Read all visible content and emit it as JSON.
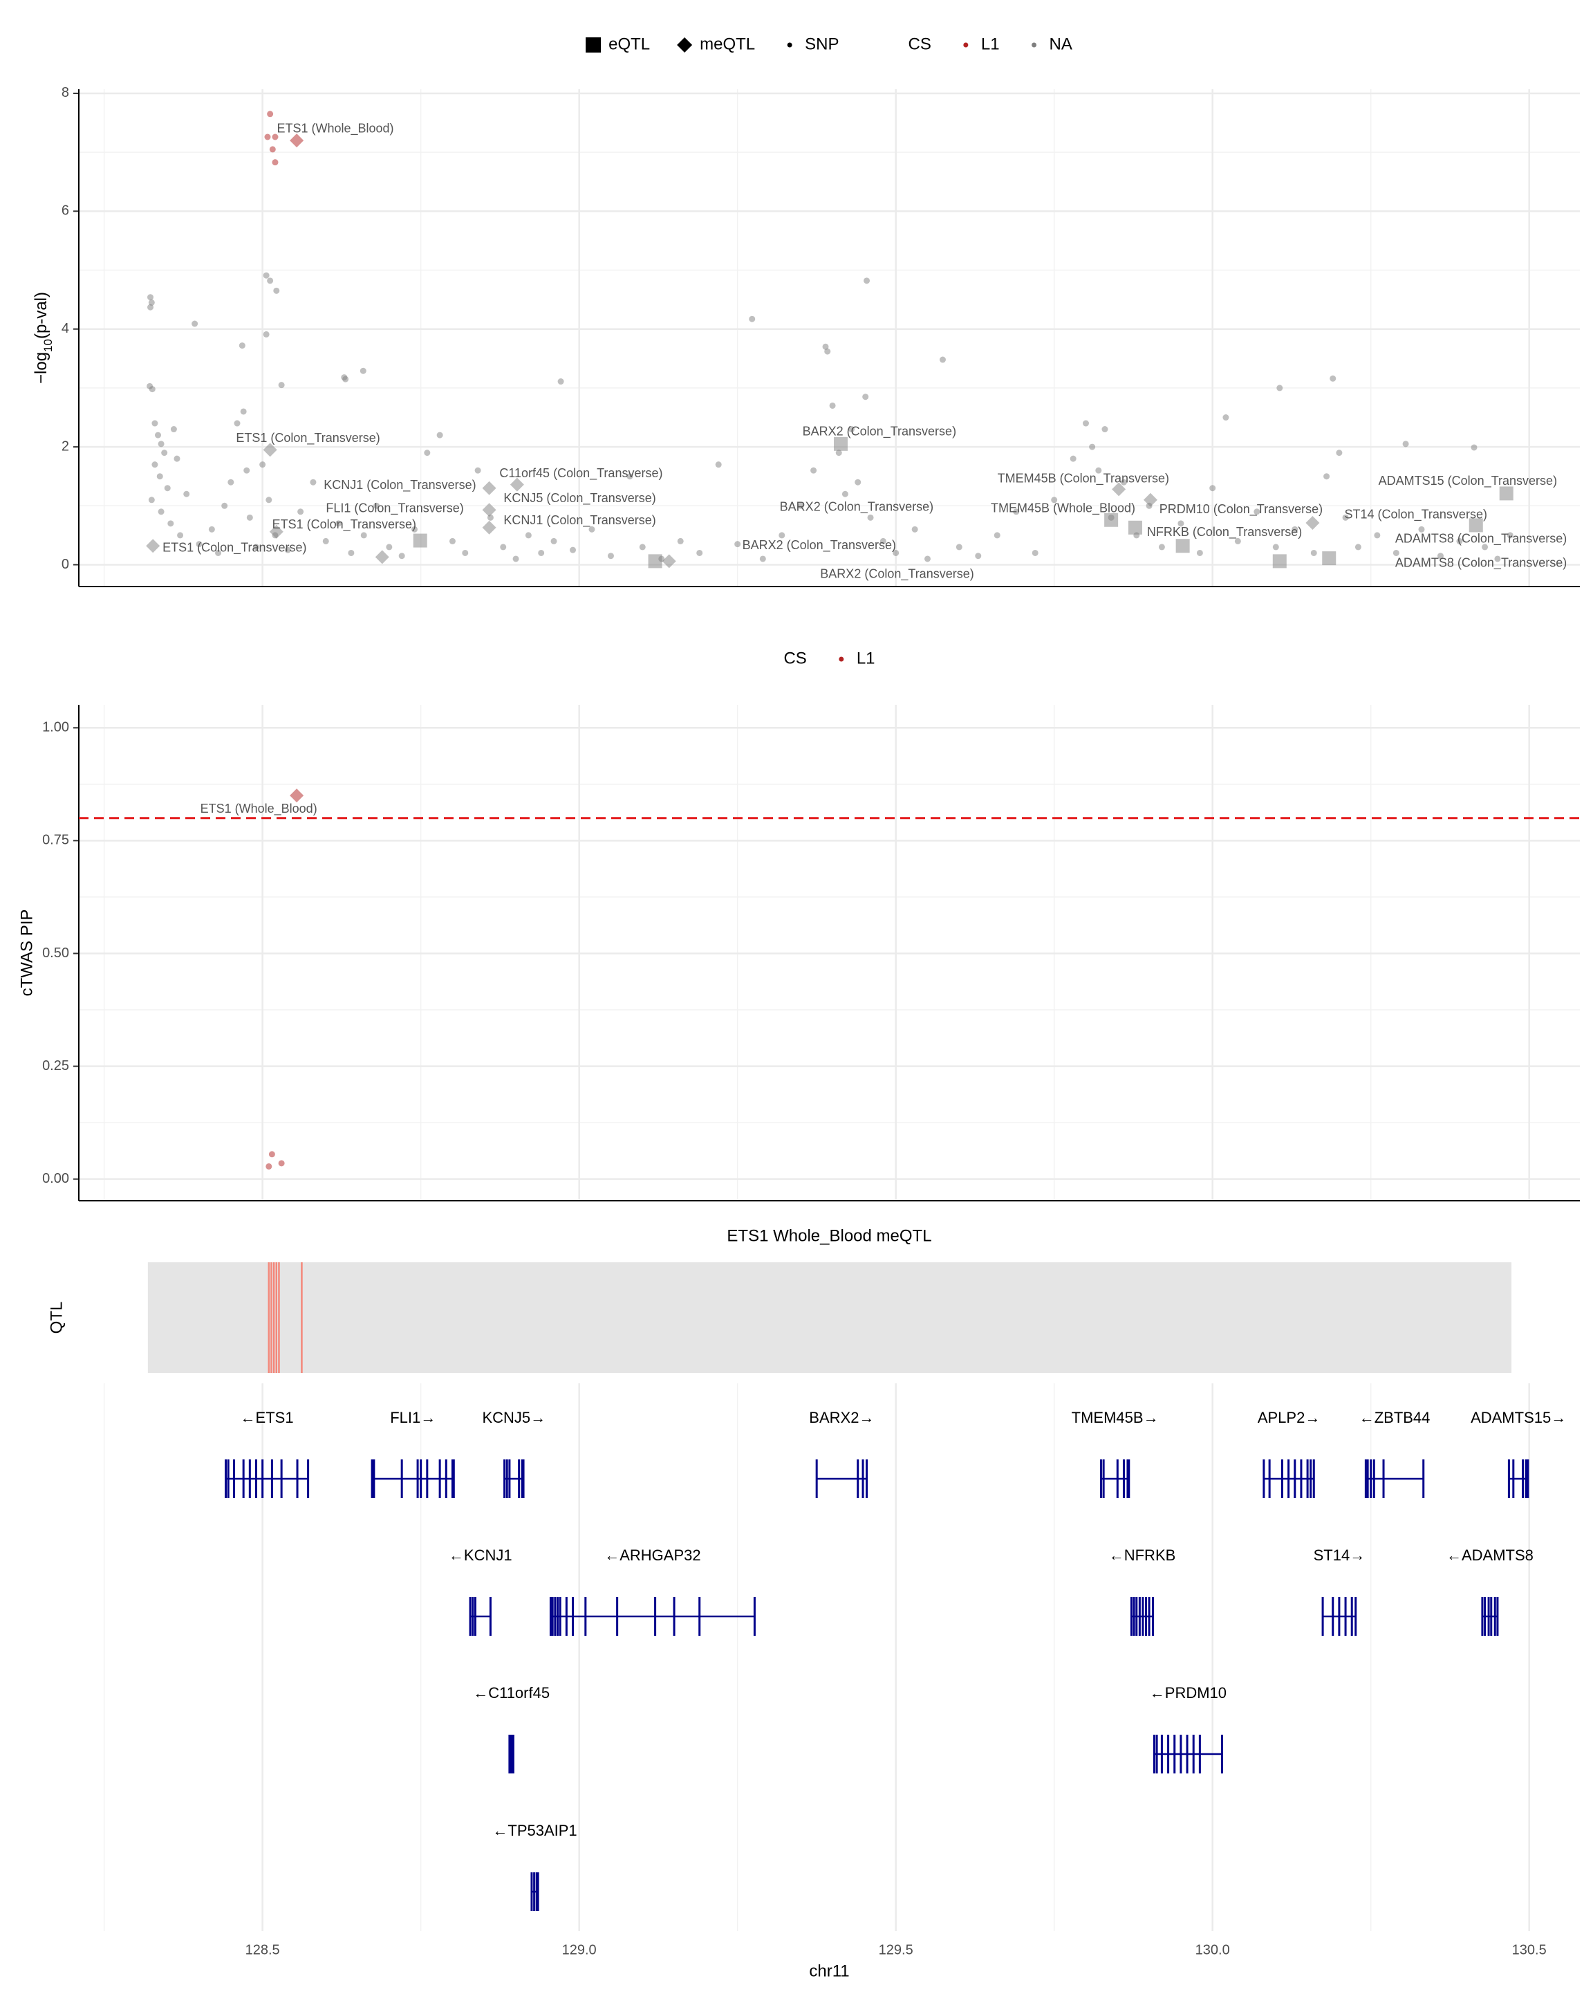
{
  "chart_data": [
    {
      "type": "scatter",
      "ylabel_parts": [
        "−log",
        "10",
        "(p-val)"
      ],
      "shape_legend": [
        {
          "name": "eQTL",
          "shape": "square"
        },
        {
          "name": "meQTL",
          "shape": "diamond"
        },
        {
          "name": "SNP",
          "shape": "circle"
        }
      ],
      "color_legend": {
        "title": "CS",
        "entries": [
          {
            "name": "L1",
            "color": "#b22222"
          },
          {
            "name": "NA",
            "color": "#808080"
          }
        ]
      },
      "ylim": [
        -0.37,
        8.07
      ],
      "yticks": [
        0,
        2,
        4,
        6,
        8
      ],
      "yminor": [
        1,
        3,
        5,
        7
      ],
      "grid": true,
      "series": [
        {
          "shape": "circle",
          "cs": "NA",
          "color": "#808080",
          "x": [
            128.323,
            128.323,
            128.325,
            128.322,
            128.326,
            128.33,
            128.335,
            128.34,
            128.345,
            128.33,
            128.338,
            128.35,
            128.325,
            128.34,
            128.355,
            128.36,
            128.365,
            128.37,
            128.393,
            128.38,
            128.4,
            128.42,
            128.43,
            128.44,
            128.45,
            128.46,
            128.468,
            128.47,
            128.475,
            128.48,
            128.49,
            128.506,
            128.512,
            128.522,
            128.506,
            128.53,
            128.5,
            128.51,
            128.52,
            128.54,
            128.56,
            128.58,
            128.6,
            128.62,
            128.629,
            128.631,
            128.659,
            128.64,
            128.66,
            128.68,
            128.7,
            128.72,
            128.74,
            128.76,
            128.78,
            128.8,
            128.82,
            128.84,
            128.86,
            128.88,
            128.9,
            128.92,
            128.94,
            128.96,
            128.971,
            128.99,
            129.02,
            129.05,
            129.08,
            129.1,
            129.13,
            129.16,
            129.19,
            129.22,
            129.25,
            129.273,
            129.29,
            129.32,
            129.35,
            129.37,
            129.389,
            129.392,
            129.4,
            129.41,
            129.42,
            129.43,
            129.44,
            129.452,
            129.454,
            129.46,
            129.48,
            129.5,
            129.53,
            129.55,
            129.574,
            129.6,
            129.63,
            129.66,
            129.69,
            129.72,
            129.75,
            129.78,
            129.8,
            129.81,
            129.82,
            129.83,
            129.84,
            129.86,
            129.88,
            129.9,
            129.92,
            129.95,
            129.98,
            130.0,
            130.021,
            130.04,
            130.07,
            130.106,
            130.1,
            130.13,
            130.16,
            130.18,
            130.19,
            130.2,
            130.21,
            130.23,
            130.26,
            130.29,
            130.305,
            130.33,
            130.36,
            130.39,
            130.413,
            130.43,
            130.45,
            130.47
          ],
          "values": [
            4.54,
            4.37,
            4.45,
            3.03,
            2.98,
            2.4,
            2.2,
            2.05,
            1.9,
            1.7,
            1.5,
            1.3,
            1.1,
            0.9,
            0.7,
            2.3,
            1.8,
            0.5,
            4.09,
            1.2,
            0.35,
            0.6,
            0.2,
            1.0,
            1.4,
            2.4,
            3.72,
            2.6,
            1.6,
            0.8,
            0.3,
            4.91,
            4.82,
            4.65,
            3.91,
            3.05,
            1.7,
            1.1,
            0.5,
            0.25,
            0.9,
            1.4,
            0.4,
            0.7,
            3.18,
            3.15,
            3.29,
            0.2,
            0.5,
            1.0,
            0.3,
            0.15,
            0.6,
            1.9,
            2.2,
            0.4,
            0.2,
            1.6,
            0.8,
            0.3,
            0.1,
            0.5,
            0.2,
            0.4,
            3.11,
            0.25,
            0.6,
            0.15,
            1.5,
            0.3,
            0.1,
            0.4,
            0.2,
            1.7,
            0.35,
            4.17,
            0.1,
            0.5,
            1.0,
            1.6,
            3.7,
            3.62,
            2.7,
            1.9,
            1.2,
            2.3,
            1.4,
            2.85,
            4.82,
            0.8,
            0.4,
            0.2,
            0.6,
            0.1,
            3.48,
            0.3,
            0.15,
            0.5,
            0.9,
            0.2,
            1.1,
            1.8,
            2.4,
            2.0,
            1.6,
            2.3,
            0.8,
            1.4,
            0.5,
            1.0,
            0.3,
            0.7,
            0.2,
            1.3,
            2.5,
            0.4,
            0.9,
            3.0,
            0.3,
            0.6,
            0.2,
            1.5,
            3.16,
            1.9,
            0.8,
            0.3,
            0.5,
            0.2,
            2.05,
            0.6,
            0.15,
            0.4,
            1.99,
            0.3,
            0.1,
            0.5
          ]
        },
        {
          "shape": "diamond",
          "cs": "NA",
          "color": "#808080",
          "x": [
            128.512,
            128.858,
            128.902,
            128.858,
            128.858,
            128.522,
            128.327,
            129.852,
            129.902,
            130.158,
            129.142,
            128.689
          ],
          "values": [
            1.95,
            1.3,
            1.36,
            0.93,
            0.63,
            0.56,
            0.32,
            1.28,
            1.1,
            0.71,
            0.06,
            0.13
          ]
        },
        {
          "shape": "square",
          "cs": "NA",
          "color": "#808080",
          "x": [
            129.413,
            129.878,
            129.84,
            129.953,
            130.464,
            130.416,
            130.106,
            128.749,
            129.12,
            130.184
          ],
          "values": [
            2.05,
            0.63,
            0.76,
            0.32,
            1.21,
            0.67,
            0.06,
            0.41,
            0.06,
            0.11
          ]
        },
        {
          "shape": "circle",
          "cs": "L1",
          "color": "#b22222",
          "x": [
            128.512,
            128.508,
            128.52,
            128.516,
            128.52
          ],
          "values": [
            7.65,
            7.26,
            7.26,
            7.05,
            6.83
          ]
        },
        {
          "shape": "diamond",
          "cs": "L1",
          "color": "#b22222",
          "x": [
            128.554
          ],
          "values": [
            7.2
          ]
        }
      ],
      "annotations": [
        {
          "text": "ETS1 (Whole_Blood)",
          "x": 128.615,
          "y": 7.39
        },
        {
          "text": "ETS1 (Colon_Transverse)",
          "x": 128.572,
          "y": 2.14
        },
        {
          "text": "KCNJ1 (Colon_Transverse)",
          "x": 128.717,
          "y": 1.34
        },
        {
          "text": "C11orf45 (Colon_Transverse)",
          "x": 129.003,
          "y": 1.54
        },
        {
          "text": "KCNJ5 (Colon_Transverse)",
          "x": 129.001,
          "y": 1.12
        },
        {
          "text": "FLI1 (Colon_Transverse)",
          "x": 128.709,
          "y": 0.95
        },
        {
          "text": "KCNJ1 (Colon_Transverse)",
          "x": 129.001,
          "y": 0.74
        },
        {
          "text": "ETS1 (Colon_Transverse)",
          "x": 128.629,
          "y": 0.67
        },
        {
          "text": "ETS1 (Colon_Transverse)",
          "x": 128.456,
          "y": 0.28
        },
        {
          "text": "BARX2 (Colon_Transverse)",
          "x": 129.474,
          "y": 2.25
        },
        {
          "text": "BARX2 (Colon_Transverse)",
          "x": 129.438,
          "y": 0.97
        },
        {
          "text": "BARX2 (Colon_Transverse)",
          "x": 129.379,
          "y": 0.32
        },
        {
          "text": "BARX2 (Colon_Transverse)",
          "x": 129.502,
          "y": -0.17
        },
        {
          "text": "TMEM45B (Colon_Transverse)",
          "x": 129.796,
          "y": 1.45
        },
        {
          "text": "TMEM45B (Whole_Blood)",
          "x": 129.764,
          "y": 0.95
        },
        {
          "text": "PRDM10 (Colon_Transverse)",
          "x": 130.045,
          "y": 0.93
        },
        {
          "text": "NFRKB (Colon_Transverse)",
          "x": 130.019,
          "y": 0.54
        },
        {
          "text": "ST14 (Colon_Transverse)",
          "x": 130.321,
          "y": 0.84
        },
        {
          "text": "ADAMTS15 (Colon_Transverse)",
          "x": 130.403,
          "y": 1.41
        },
        {
          "text": "ADAMTS8 (Colon_Transverse)",
          "x": 130.424,
          "y": 0.43
        },
        {
          "text": "ADAMTS8 (Colon_Transverse)",
          "x": 130.424,
          "y": 0.02
        }
      ]
    },
    {
      "type": "scatter",
      "ylabel": "cTWAS PIP",
      "color_legend": {
        "title": "CS",
        "entries": [
          {
            "name": "L1",
            "color": "#b22222"
          }
        ]
      },
      "ylim": [
        -0.048,
        1.051
      ],
      "yticks": [
        {
          "value": 0,
          "label": "0.00"
        },
        {
          "value": 0.25,
          "label": "0.25"
        },
        {
          "value": 0.5,
          "label": "0.50"
        },
        {
          "value": 0.75,
          "label": "0.75"
        },
        {
          "value": 1,
          "label": "1.00"
        }
      ],
      "yminor": [
        0.125,
        0.375,
        0.625,
        0.875
      ],
      "grid": true,
      "threshold": 0.8,
      "threshold_color": "#e41a1c",
      "series": [
        {
          "shape": "diamond",
          "cs": "L1",
          "color": "#b22222",
          "x": [
            128.554
          ],
          "values": [
            0.85
          ]
        },
        {
          "shape": "circle",
          "cs": "L1",
          "color": "#b22222",
          "x": [
            128.515,
            128.51,
            128.53
          ],
          "values": [
            0.055,
            0.028,
            0.035
          ]
        }
      ],
      "annotations": [
        {
          "text": "ETS1 (Whole_Blood)",
          "x": 128.494,
          "y": 0.819
        }
      ]
    },
    {
      "type": "qtl_track",
      "title": "ETS1 Whole_Blood meQTL",
      "ylabel": "QTL",
      "range": [
        128.319,
        130.472
      ],
      "positions": [
        128.51,
        128.514,
        128.518,
        128.522,
        128.526,
        128.562
      ],
      "color": "#f4877a",
      "background": "#e5e5e5"
    },
    {
      "type": "gene_track",
      "xlabel": "chr11",
      "xlim": [
        128.21,
        130.58
      ],
      "xticks": [
        128.5,
        {
          "value": 129,
          "label": "129.0"
        },
        129.5,
        {
          "value": 130,
          "label": "130.0"
        },
        130.5
      ],
      "xminor": [
        128.25,
        128.75,
        129.25,
        129.75,
        130.25
      ],
      "color": "#00008b",
      "genes": [
        {
          "label": "←ETS1",
          "row": 0,
          "start": 128.442,
          "end": 128.572,
          "exons": [
            128.442,
            128.446,
            128.455,
            128.47,
            128.48,
            128.49,
            128.5,
            128.515,
            128.53,
            128.555,
            128.572
          ]
        },
        {
          "label": "FLI1→",
          "row": 0,
          "start": 128.673,
          "end": 128.802,
          "exons": [
            128.673,
            128.676,
            128.72,
            128.745,
            128.75,
            128.76,
            128.78,
            128.79,
            128.8,
            128.802
          ]
        },
        {
          "label": "KCNJ5→",
          "row": 0,
          "start": 128.882,
          "end": 128.912,
          "exons": [
            128.882,
            128.886,
            128.89,
            128.905,
            128.91,
            128.912
          ]
        },
        {
          "label": "BARX2→",
          "row": 0,
          "start": 129.375,
          "end": 129.454,
          "exons": [
            129.375,
            129.44,
            129.448,
            129.454
          ]
        },
        {
          "label": "TMEM45B→",
          "row": 0,
          "start": 129.824,
          "end": 129.868,
          "exons": [
            129.824,
            129.828,
            129.85,
            129.86,
            129.866,
            129.868
          ]
        },
        {
          "label": "APLP2→",
          "row": 0,
          "start": 130.081,
          "end": 130.16,
          "exons": [
            130.081,
            130.09,
            130.11,
            130.12,
            130.13,
            130.14,
            130.15,
            130.155,
            130.16
          ]
        },
        {
          "label": "←ZBTB44",
          "row": 0,
          "start": 130.242,
          "end": 130.333,
          "exons": [
            130.242,
            130.245,
            130.25,
            130.255,
            130.27,
            130.333
          ]
        },
        {
          "label": "ADAMTS15→",
          "row": 0,
          "start": 130.468,
          "end": 130.498,
          "exons": [
            130.468,
            130.475,
            130.49,
            130.495,
            130.498
          ]
        },
        {
          "label": "←KCNJ1",
          "row": 1,
          "start": 128.828,
          "end": 128.86,
          "exons": [
            128.828,
            128.832,
            128.836,
            128.86
          ]
        },
        {
          "label": "←ARHGAP32",
          "row": 1,
          "start": 128.955,
          "end": 129.277,
          "exons": [
            128.955,
            128.958,
            128.962,
            128.966,
            128.97,
            128.98,
            128.99,
            129.01,
            129.06,
            129.12,
            129.15,
            129.19,
            129.277
          ]
        },
        {
          "label": "←NFRKB",
          "row": 1,
          "start": 129.872,
          "end": 129.906,
          "exons": [
            129.872,
            129.876,
            129.88,
            129.885,
            129.89,
            129.895,
            129.9,
            129.906
          ]
        },
        {
          "label": "ST14→",
          "row": 1,
          "start": 130.174,
          "end": 130.226,
          "exons": [
            130.174,
            130.19,
            130.2,
            130.21,
            130.22,
            130.226
          ]
        },
        {
          "label": "←ADAMTS8",
          "row": 1,
          "start": 130.426,
          "end": 130.45,
          "exons": [
            130.426,
            130.43,
            130.436,
            130.44,
            130.446,
            130.45
          ]
        },
        {
          "label": "←C11orf45",
          "row": 2,
          "start": 128.89,
          "end": 128.896,
          "exons": [
            128.89,
            128.892,
            128.894,
            128.896
          ]
        },
        {
          "label": "←PRDM10",
          "row": 2,
          "start": 129.908,
          "end": 130.015,
          "exons": [
            129.908,
            129.912,
            129.92,
            129.93,
            129.94,
            129.95,
            129.96,
            129.97,
            129.98,
            130.015
          ]
        },
        {
          "label": "←TP53AIP1",
          "row": 3,
          "start": 128.925,
          "end": 128.935,
          "exons": [
            128.925,
            128.929,
            128.933,
            128.935
          ]
        }
      ]
    }
  ]
}
